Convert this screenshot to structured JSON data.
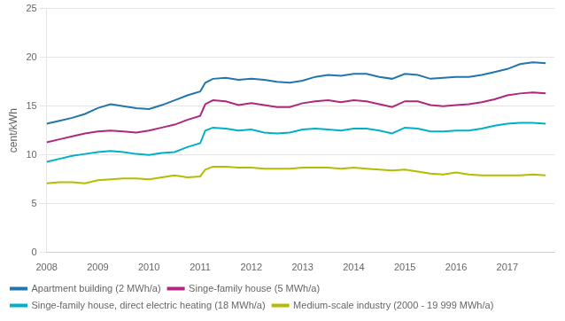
{
  "chart_data": {
    "type": "line",
    "ylabel": "cent/kWh",
    "x": [
      2008.0,
      2008.25,
      2008.5,
      2008.75,
      2009.0,
      2009.25,
      2009.5,
      2009.75,
      2010.0,
      2010.25,
      2010.5,
      2010.75,
      2011.0,
      2011.1,
      2011.25,
      2011.5,
      2011.75,
      2012.0,
      2012.25,
      2012.5,
      2012.75,
      2013.0,
      2013.25,
      2013.5,
      2013.75,
      2014.0,
      2014.25,
      2014.5,
      2014.75,
      2015.0,
      2015.25,
      2015.5,
      2015.75,
      2016.0,
      2016.25,
      2016.5,
      2016.75,
      2017.0,
      2017.25,
      2017.5,
      2017.75
    ],
    "series": [
      {
        "name": "Apartment building (2 MWh/a)",
        "color": "#2176ae",
        "values": [
          13.2,
          13.5,
          13.8,
          14.2,
          14.8,
          15.2,
          15.0,
          14.8,
          14.7,
          15.1,
          15.6,
          16.1,
          16.5,
          17.4,
          17.8,
          17.9,
          17.7,
          17.8,
          17.7,
          17.5,
          17.4,
          17.6,
          18.0,
          18.2,
          18.1,
          18.3,
          18.3,
          18.0,
          17.8,
          18.3,
          18.2,
          17.8,
          17.9,
          18.0,
          18.0,
          18.2,
          18.5,
          18.8,
          19.3,
          19.5,
          19.4
        ]
      },
      {
        "name": "Singe-family house (5 MWh/a)",
        "color": "#b0277f",
        "values": [
          11.3,
          11.6,
          11.9,
          12.2,
          12.4,
          12.5,
          12.4,
          12.3,
          12.5,
          12.8,
          13.1,
          13.6,
          14.0,
          15.2,
          15.6,
          15.5,
          15.1,
          15.3,
          15.1,
          14.9,
          14.9,
          15.3,
          15.5,
          15.6,
          15.4,
          15.6,
          15.5,
          15.2,
          14.9,
          15.5,
          15.5,
          15.1,
          15.0,
          15.1,
          15.2,
          15.4,
          15.7,
          16.1,
          16.3,
          16.4,
          16.3
        ]
      },
      {
        "name": "Singe-family house, direct electric heating (18 MWh/a)",
        "color": "#00b0c8",
        "values": [
          9.3,
          9.6,
          9.9,
          10.1,
          10.3,
          10.4,
          10.3,
          10.1,
          10.0,
          10.2,
          10.3,
          10.8,
          11.2,
          12.5,
          12.8,
          12.7,
          12.5,
          12.6,
          12.3,
          12.2,
          12.3,
          12.6,
          12.7,
          12.6,
          12.5,
          12.7,
          12.7,
          12.5,
          12.2,
          12.8,
          12.7,
          12.4,
          12.4,
          12.5,
          12.5,
          12.7,
          13.0,
          13.2,
          13.3,
          13.3,
          13.2
        ]
      },
      {
        "name": "Medium-scale industry (2000 - 19 999 MWh/a)",
        "color": "#b5bd00",
        "values": [
          7.1,
          7.2,
          7.2,
          7.1,
          7.4,
          7.5,
          7.6,
          7.6,
          7.5,
          7.7,
          7.9,
          7.7,
          7.8,
          8.5,
          8.8,
          8.8,
          8.7,
          8.7,
          8.6,
          8.6,
          8.6,
          8.7,
          8.7,
          8.7,
          8.6,
          8.7,
          8.6,
          8.5,
          8.4,
          8.5,
          8.3,
          8.1,
          8.0,
          8.2,
          8.0,
          7.9,
          7.9,
          7.9,
          7.9,
          8.0,
          7.9
        ]
      }
    ],
    "xlim": [
      2008.0,
      2017.92
    ],
    "xticks": [
      2008,
      2009,
      2010,
      2011,
      2012,
      2013,
      2014,
      2015,
      2016,
      2017
    ],
    "ylim": [
      0,
      25
    ],
    "yticks": [
      0,
      5,
      10,
      15,
      20,
      25
    ],
    "grid": "y",
    "legend": "bottom"
  }
}
